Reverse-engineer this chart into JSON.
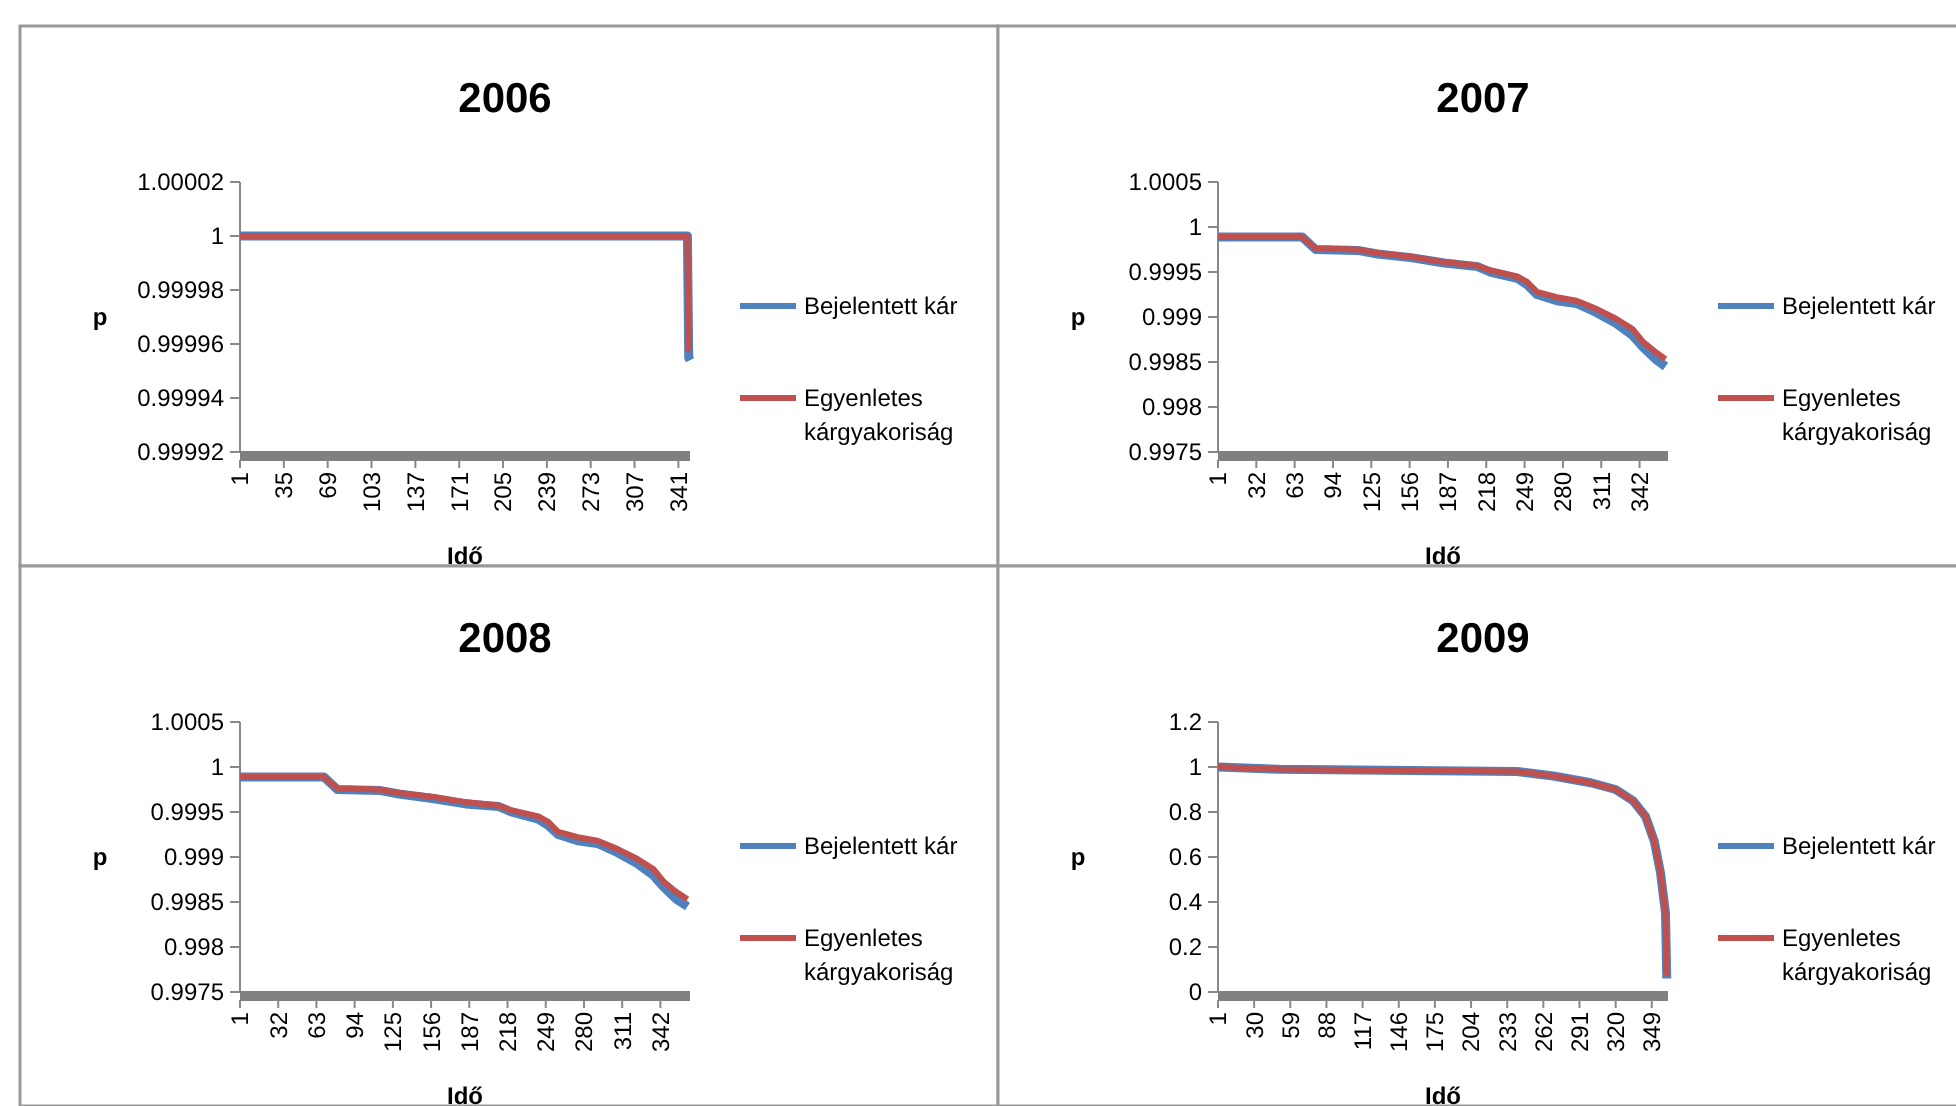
{
  "chart_data": [
    {
      "type": "line",
      "title": "2006",
      "xlabel": "Idő",
      "ylabel": "p",
      "xlim": [
        1,
        350
      ],
      "xticks": [
        1,
        35,
        69,
        103,
        137,
        171,
        205,
        239,
        273,
        307,
        341
      ],
      "ylim": [
        0.99992,
        1.00002
      ],
      "yticks": [
        0.99992,
        0.99994,
        0.99996,
        0.99998,
        1,
        1.00002
      ],
      "legend": "right",
      "grid": false,
      "series": [
        {
          "name": "Bejelentett kár",
          "color": "#4f81bd",
          "x": [
            1,
            100,
            200,
            300,
            348,
            349,
            350
          ],
          "values": [
            1,
            1,
            1,
            1,
            1,
            0.999955,
            0.999954
          ]
        },
        {
          "name": "Egyenletes kárgyakoriság",
          "color": "#c0504d",
          "x": [
            1,
            100,
            200,
            300,
            348,
            349,
            350
          ],
          "values": [
            1,
            1,
            1,
            1,
            1,
            0.999958,
            0.999958
          ]
        }
      ]
    },
    {
      "type": "line",
      "title": "2007",
      "xlabel": "Idő",
      "ylabel": "p",
      "xlim": [
        1,
        365
      ],
      "xticks": [
        1,
        32,
        63,
        94,
        125,
        156,
        187,
        218,
        249,
        280,
        311,
        342
      ],
      "ylim": [
        0.9975,
        1.0005
      ],
      "yticks": [
        0.9975,
        0.998,
        0.9985,
        0.999,
        0.9995,
        1,
        1.0005
      ],
      "legend": "right",
      "grid": false,
      "series": [
        {
          "name": "Bejelentett kár",
          "color": "#4f81bd",
          "x": [
            1,
            69,
            80,
            114,
            130,
            157,
            184,
            211,
            221,
            243,
            251,
            259,
            275,
            291,
            307,
            323,
            336,
            345,
            355,
            363
          ],
          "values": [
            0.99989,
            0.99989,
            0.99975,
            0.99974,
            0.9997,
            0.99966,
            0.9996,
            0.99956,
            0.9995,
            0.99943,
            0.99936,
            0.99925,
            0.99918,
            0.99915,
            0.99905,
            0.99893,
            0.9988,
            0.99866,
            0.99853,
            0.99845
          ]
        },
        {
          "name": "Egyenletes kárgyakoriság",
          "color": "#c0504d",
          "x": [
            1,
            69,
            80,
            114,
            130,
            157,
            184,
            211,
            221,
            243,
            251,
            259,
            275,
            291,
            307,
            323,
            336,
            345,
            355,
            363
          ],
          "values": [
            0.99989,
            0.99989,
            0.99976,
            0.99975,
            0.99971,
            0.99967,
            0.99961,
            0.99957,
            0.99952,
            0.99945,
            0.99939,
            0.99928,
            0.99922,
            0.99918,
            0.99909,
            0.99898,
            0.99887,
            0.99872,
            0.99861,
            0.99853
          ]
        }
      ]
    },
    {
      "type": "line",
      "title": "2008",
      "xlabel": "Idő",
      "ylabel": "p",
      "xlim": [
        1,
        366
      ],
      "xticks": [
        1,
        32,
        63,
        94,
        125,
        156,
        187,
        218,
        249,
        280,
        311,
        342
      ],
      "ylim": [
        0.9975,
        1.0005
      ],
      "yticks": [
        0.9975,
        0.998,
        0.9985,
        0.999,
        0.9995,
        1,
        1.0005
      ],
      "legend": "right",
      "grid": false,
      "series": [
        {
          "name": "Bejelentett kár",
          "color": "#4f81bd",
          "x": [
            1,
            69,
            80,
            114,
            130,
            157,
            184,
            211,
            221,
            243,
            251,
            259,
            275,
            291,
            307,
            323,
            336,
            345,
            355,
            364
          ],
          "values": [
            0.99989,
            0.99989,
            0.99975,
            0.99974,
            0.9997,
            0.99965,
            0.99959,
            0.99956,
            0.9995,
            0.99942,
            0.99935,
            0.99925,
            0.99918,
            0.99915,
            0.99905,
            0.99893,
            0.9988,
            0.99866,
            0.99853,
            0.99845
          ]
        },
        {
          "name": "Egyenletes kárgyakoriság",
          "color": "#c0504d",
          "x": [
            1,
            69,
            80,
            114,
            130,
            157,
            184,
            211,
            221,
            243,
            251,
            259,
            275,
            291,
            307,
            323,
            336,
            345,
            355,
            364
          ],
          "values": [
            0.99989,
            0.99989,
            0.99976,
            0.99975,
            0.99971,
            0.99967,
            0.99961,
            0.99957,
            0.99952,
            0.99945,
            0.99939,
            0.99928,
            0.99922,
            0.99918,
            0.99909,
            0.99898,
            0.99887,
            0.99872,
            0.99861,
            0.99853
          ]
        }
      ]
    },
    {
      "type": "line",
      "title": "2009",
      "xlabel": "Idő",
      "ylabel": "p",
      "xlim": [
        1,
        362
      ],
      "xticks": [
        1,
        30,
        59,
        88,
        117,
        146,
        175,
        204,
        233,
        262,
        291,
        320,
        349
      ],
      "ylim": [
        0,
        1.2
      ],
      "yticks": [
        0,
        0.2,
        0.4,
        0.6,
        0.8,
        1,
        1.2
      ],
      "legend": "right",
      "grid": false,
      "series": [
        {
          "name": "Bejelentett kár",
          "color": "#4f81bd",
          "x": [
            1,
            50,
            241,
            270,
            300,
            320,
            334,
            344,
            351,
            356,
            360,
            361
          ],
          "values": [
            1,
            0.99,
            0.98,
            0.96,
            0.93,
            0.9,
            0.85,
            0.78,
            0.67,
            0.53,
            0.35,
            0.06
          ]
        },
        {
          "name": "Egyenletes kárgyakoriság",
          "color": "#c0504d",
          "x": [
            1,
            50,
            241,
            270,
            300,
            320,
            334,
            344,
            351,
            356,
            360,
            361
          ],
          "values": [
            1,
            0.99,
            0.98,
            0.96,
            0.93,
            0.9,
            0.85,
            0.78,
            0.67,
            0.53,
            0.35,
            0.07
          ]
        }
      ]
    }
  ]
}
